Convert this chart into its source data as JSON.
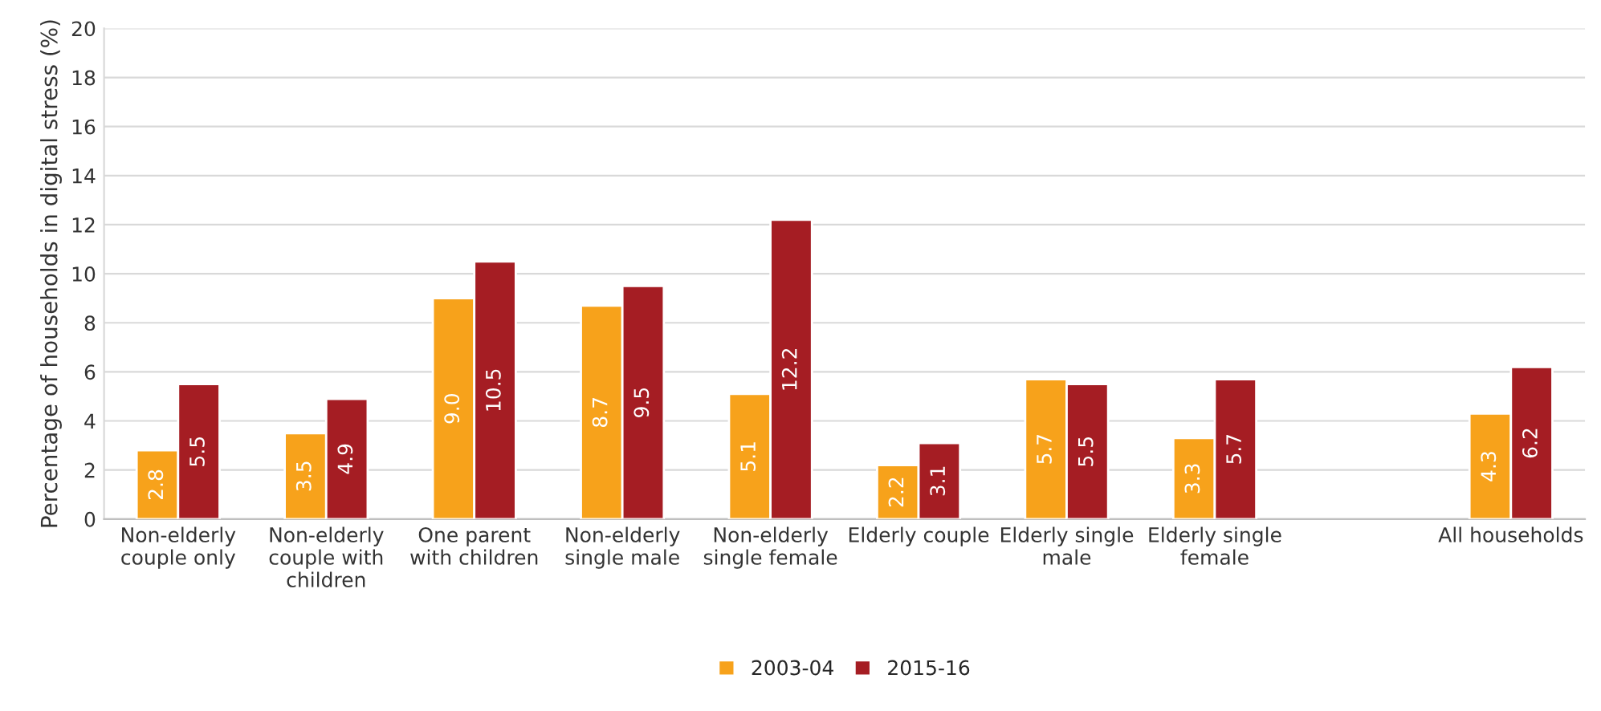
{
  "chart_data": {
    "type": "bar",
    "ylabel": "Percentage of households in digital stress (%)",
    "categories": [
      "Non-elderly\ncouple only",
      "Non-elderly\ncouple with\nchildren",
      "One parent\nwith children",
      "Non-elderly\nsingle male",
      "Non-elderly\nsingle female",
      "Elderly couple",
      "Elderly single\nmale",
      "Elderly single\nfemale",
      null,
      "All households"
    ],
    "series": [
      {
        "name": "2003-04",
        "color": "#f7a21b",
        "values": [
          2.8,
          3.5,
          9.0,
          8.7,
          5.1,
          2.2,
          5.7,
          3.3,
          null,
          4.3
        ],
        "value_labels": [
          "2.8",
          "3.5",
          "9.0",
          "8.7",
          "5.1",
          "2.2",
          "5.7",
          "3.3",
          null,
          "4.3"
        ]
      },
      {
        "name": "2015-16",
        "color": "#a51d23",
        "values": [
          5.5,
          4.9,
          10.5,
          9.5,
          12.2,
          3.1,
          5.5,
          5.7,
          null,
          6.2
        ],
        "value_labels": [
          "5.5",
          "4.9",
          "10.5",
          "9.5",
          "12.2",
          "3.1",
          "5.5",
          "5.7",
          null,
          "6.2"
        ]
      }
    ],
    "ylim": [
      0,
      20
    ],
    "yticks": [
      0,
      2,
      4,
      6,
      8,
      10,
      12,
      14,
      16,
      18,
      20
    ],
    "grid": "y",
    "legend": "bottom"
  }
}
